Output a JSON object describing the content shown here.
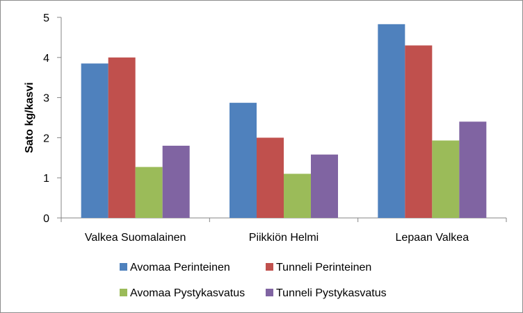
{
  "chart_data": {
    "type": "bar",
    "title": "",
    "xlabel": "",
    "ylabel": "Sato kg/kasvi",
    "ylim": [
      0,
      5
    ],
    "yticks": [
      0,
      1,
      2,
      3,
      4,
      5
    ],
    "grid": false,
    "legend_position": "bottom",
    "categories": [
      "Valkea Suomalainen",
      "Piikkiön Helmi",
      "Lepaan Valkea"
    ],
    "series": [
      {
        "name": "Avomaa Perinteinen",
        "color": "#4f81bd",
        "values": [
          3.85,
          2.87,
          4.83
        ]
      },
      {
        "name": "Tunneli Perinteinen",
        "color": "#c0504d",
        "values": [
          4.0,
          2.0,
          4.3
        ]
      },
      {
        "name": "Avomaa Pystykasvatus",
        "color": "#9bbb59",
        "values": [
          1.27,
          1.1,
          1.93
        ]
      },
      {
        "name": "Tunneli Pystykasvatus",
        "color": "#8064a2",
        "values": [
          1.8,
          1.58,
          2.4
        ]
      }
    ]
  }
}
